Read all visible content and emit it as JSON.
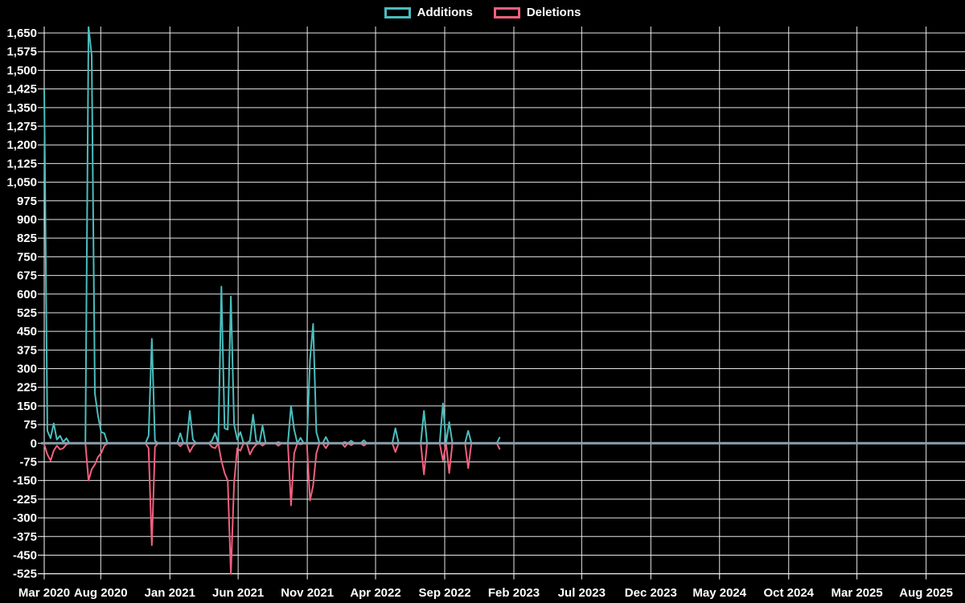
{
  "legend": {
    "items": [
      {
        "label": "Additions",
        "color": "#4abdbe"
      },
      {
        "label": "Deletions",
        "color": "#f1607e"
      }
    ]
  },
  "colors": {
    "background": "#000000",
    "grid": "#ffffff",
    "text": "#ffffff",
    "zero_line": "#8ba1ad",
    "additions": "#4abdbe",
    "deletions": "#f1607e"
  },
  "chart_data": {
    "type": "line",
    "title": "",
    "xlabel": "",
    "ylabel": "",
    "legend_position": "top-center",
    "grid": true,
    "y_axis": {
      "min": -525,
      "max": 1650,
      "step": 75,
      "tick_labels": [
        "1,650",
        "1,575",
        "1,500",
        "1,425",
        "1,350",
        "1,275",
        "1,200",
        "1,125",
        "1,050",
        "975",
        "900",
        "825",
        "750",
        "675",
        "600",
        "525",
        "450",
        "375",
        "300",
        "225",
        "150",
        "75",
        "0",
        "-75",
        "-150",
        "-225",
        "-300",
        "-375",
        "-450",
        "-525"
      ]
    },
    "x_axis": {
      "unit": "time (weekly data)",
      "range_start": "2020-03-29",
      "range_end": "2025-10-26",
      "ticks": [
        {
          "label": "Mar 2020",
          "date": "2020-03-29"
        },
        {
          "label": "Aug 2020",
          "date": "2020-08-01"
        },
        {
          "label": "Jan 2021",
          "date": "2021-01-01"
        },
        {
          "label": "Jun 2021",
          "date": "2021-06-01"
        },
        {
          "label": "Nov 2021",
          "date": "2021-11-01"
        },
        {
          "label": "Apr 2022",
          "date": "2022-04-01"
        },
        {
          "label": "Sep 2022",
          "date": "2022-09-01"
        },
        {
          "label": "Feb 2023",
          "date": "2023-02-01"
        },
        {
          "label": "Jul 2023",
          "date": "2023-07-01"
        },
        {
          "label": "Dec 2023",
          "date": "2023-12-01"
        },
        {
          "label": "May 2024",
          "date": "2024-05-01"
        },
        {
          "label": "Oct 2024",
          "date": "2024-10-01"
        },
        {
          "label": "Mar 2025",
          "date": "2025-03-01"
        },
        {
          "label": "Aug 2025",
          "date": "2025-08-01"
        }
      ]
    },
    "series": [
      {
        "name": "Additions",
        "color": "#4abdbe",
        "sign": 1
      },
      {
        "name": "Deletions",
        "color": "#f1607e",
        "sign": -1
      }
    ],
    "data_start": "2020-03-29",
    "data_end": "2023-01-01",
    "weekly_nonzero": {
      "2020-03-29": [
        1425,
        -5
      ],
      "2020-04-05": [
        50,
        -45
      ],
      "2020-04-12": [
        20,
        -70
      ],
      "2020-04-19": [
        80,
        -30
      ],
      "2020-04-26": [
        15,
        -10
      ],
      "2020-05-03": [
        30,
        -25
      ],
      "2020-05-10": [
        5,
        -20
      ],
      "2020-05-17": [
        20,
        -5
      ],
      "2020-07-05": [
        1675,
        -150
      ],
      "2020-07-12": [
        1560,
        -105
      ],
      "2020-07-19": [
        200,
        -85
      ],
      "2020-07-26": [
        110,
        -55
      ],
      "2020-08-02": [
        45,
        -40
      ],
      "2020-08-09": [
        40,
        -10
      ],
      "2020-11-15": [
        30,
        -20
      ],
      "2020-11-22": [
        420,
        -410
      ],
      "2020-11-29": [
        10,
        -15
      ],
      "2021-01-24": [
        40,
        -12
      ],
      "2021-02-14": [
        130,
        -35
      ],
      "2021-02-21": [
        15,
        -12
      ],
      "2021-04-04": [
        10,
        -15
      ],
      "2021-04-11": [
        40,
        -20
      ],
      "2021-04-25": [
        630,
        -70
      ],
      "2021-05-02": [
        60,
        -120
      ],
      "2021-05-09": [
        55,
        -150
      ],
      "2021-05-16": [
        590,
        -525
      ],
      "2021-05-23": [
        75,
        -160
      ],
      "2021-05-30": [
        15,
        -20
      ],
      "2021-06-06": [
        45,
        -30
      ],
      "2021-06-27": [
        10,
        -45
      ],
      "2021-07-04": [
        115,
        -20
      ],
      "2021-07-11": [
        10,
        -5
      ],
      "2021-07-25": [
        70,
        -10
      ],
      "2021-08-29": [
        5,
        -10
      ],
      "2021-09-26": [
        150,
        -250
      ],
      "2021-10-03": [
        55,
        -40
      ],
      "2021-10-17": [
        22,
        -5
      ],
      "2021-11-07": [
        335,
        -230
      ],
      "2021-11-14": [
        480,
        -170
      ],
      "2021-11-21": [
        45,
        -40
      ],
      "2021-12-12": [
        25,
        -20
      ],
      "2022-01-23": [
        5,
        -15
      ],
      "2022-02-06": [
        10,
        -8
      ],
      "2022-03-06": [
        12,
        -10
      ],
      "2022-05-15": [
        60,
        -35
      ],
      "2022-07-17": [
        130,
        -125
      ],
      "2022-08-28": [
        160,
        -70
      ],
      "2022-09-11": [
        85,
        -120
      ],
      "2022-10-23": [
        50,
        -100
      ],
      "2023-01-01": [
        25,
        -25
      ]
    }
  }
}
